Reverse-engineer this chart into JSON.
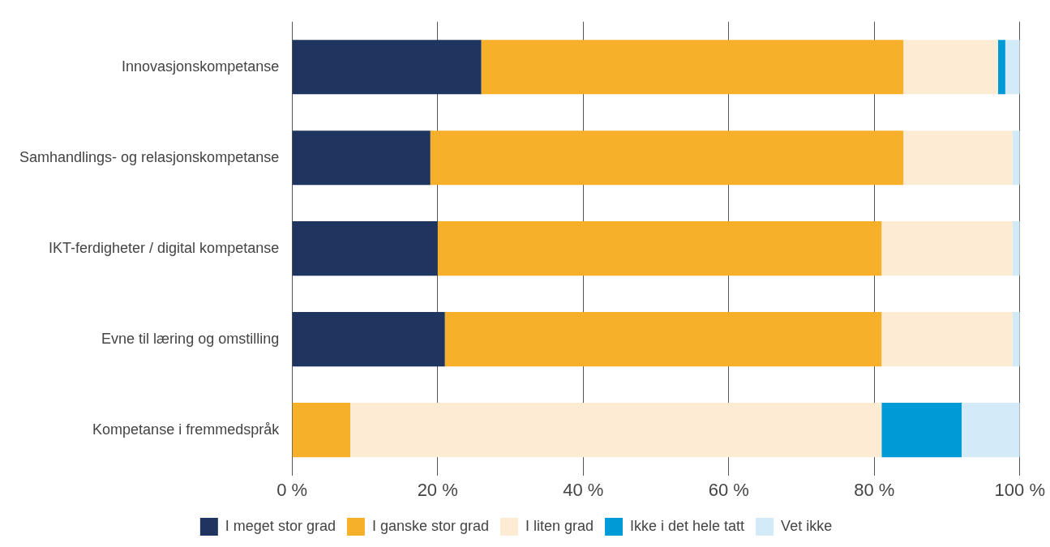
{
  "chart_data": {
    "type": "bar",
    "orientation": "horizontal",
    "stacked": true,
    "categories": [
      "Innovasjonskompetanse",
      "Samhandlings- og relasjonskompetanse",
      "IKT-ferdigheter / digital kompetanse",
      "Evne til læring og omstilling",
      "Kompetanse i fremmedspråk"
    ],
    "series": [
      {
        "name": "I meget stor grad",
        "color": "#1f3560",
        "values": [
          26,
          19,
          20,
          21,
          0
        ]
      },
      {
        "name": "I ganske stor grad",
        "color": "#f7b029",
        "values": [
          58,
          65,
          61,
          60,
          8
        ]
      },
      {
        "name": "I liten grad",
        "color": "#fdebd3",
        "values": [
          13,
          15,
          18,
          18,
          73
        ]
      },
      {
        "name": "Ikke i det hele tatt",
        "color": "#009ad7",
        "values": [
          1,
          0,
          0,
          0,
          11
        ]
      },
      {
        "name": "Vet ikke",
        "color": "#d3eaf8",
        "values": [
          2,
          1,
          1,
          1,
          8
        ]
      }
    ],
    "xlim": [
      0,
      100
    ],
    "xticks": [
      {
        "value": 0,
        "label": "0 %"
      },
      {
        "value": 20,
        "label": "20 %"
      },
      {
        "value": 40,
        "label": "40 %"
      },
      {
        "value": 60,
        "label": "60 %"
      },
      {
        "value": 80,
        "label": "80 %"
      },
      {
        "value": 100,
        "label": "100 %"
      }
    ],
    "grid": "x",
    "legend": "bottom"
  }
}
